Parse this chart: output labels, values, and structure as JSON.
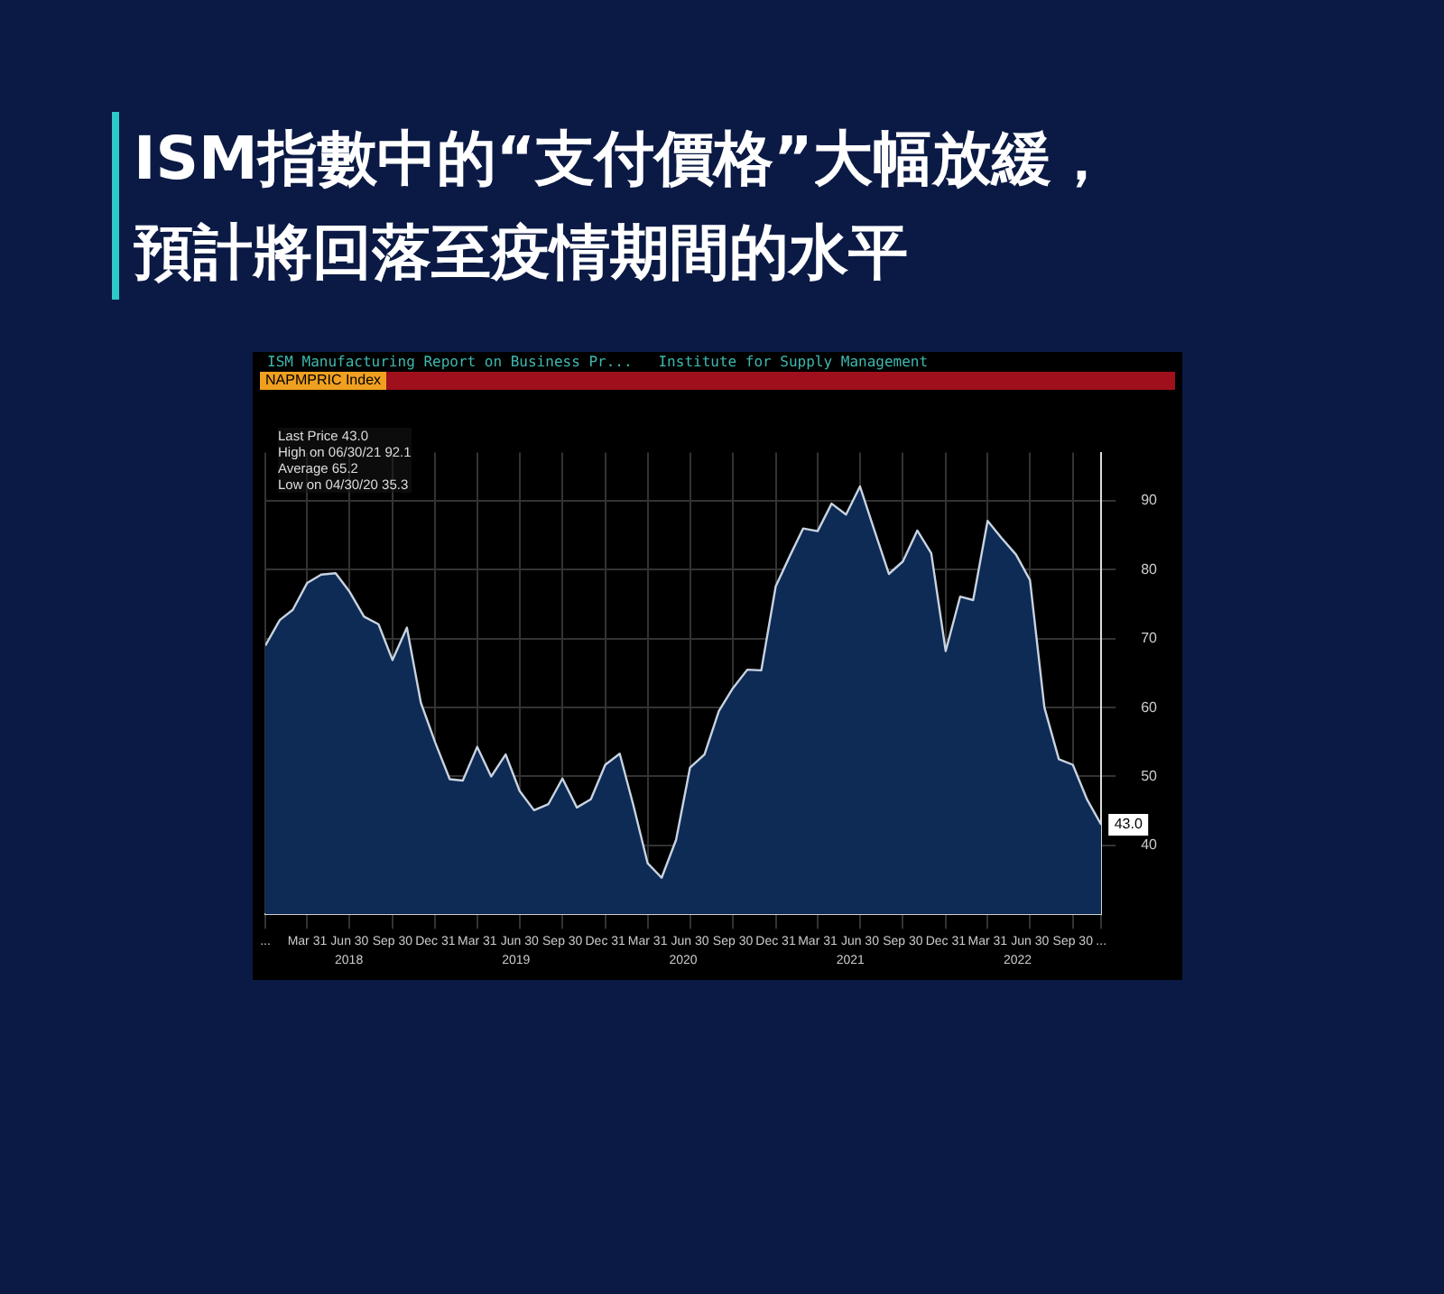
{
  "chart_data": {
    "type": "area",
    "title": "ISM指數中的“支付價格”大幅放緩，預計將回落至疫情期間的水平",
    "subtitle": "ISM Manufacturing Report on Business Pr...   Institute for Supply Management",
    "x": [
      "2017-12-31",
      "2018-01-31",
      "2018-02-28",
      "2018-03-31",
      "2018-04-30",
      "2018-05-31",
      "2018-06-30",
      "2018-07-31",
      "2018-08-31",
      "2018-09-30",
      "2018-10-31",
      "2018-11-30",
      "2018-12-31",
      "2019-01-31",
      "2019-02-28",
      "2019-03-31",
      "2019-04-30",
      "2019-05-31",
      "2019-06-30",
      "2019-07-31",
      "2019-08-31",
      "2019-09-30",
      "2019-10-31",
      "2019-11-30",
      "2019-12-31",
      "2020-01-31",
      "2020-02-29",
      "2020-03-31",
      "2020-04-30",
      "2020-05-31",
      "2020-06-30",
      "2020-07-31",
      "2020-08-31",
      "2020-09-30",
      "2020-10-31",
      "2020-11-30",
      "2020-12-31",
      "2021-01-31",
      "2021-02-28",
      "2021-03-31",
      "2021-04-30",
      "2021-05-31",
      "2021-06-30",
      "2021-07-31",
      "2021-08-31",
      "2021-09-30",
      "2021-10-31",
      "2021-11-30",
      "2021-12-31",
      "2022-01-31",
      "2022-02-28",
      "2022-03-31",
      "2022-04-30",
      "2022-05-31",
      "2022-06-30",
      "2022-07-31",
      "2022-08-31",
      "2022-09-30",
      "2022-10-31",
      "2022-11-30"
    ],
    "series": [
      {
        "color": "#0d2b55",
        "values": [
          69.0,
          72.7,
          74.2,
          78.1,
          79.3,
          79.5,
          76.8,
          73.2,
          72.1,
          66.9,
          71.6,
          60.7,
          54.9,
          49.6,
          49.4,
          54.3,
          50.0,
          53.2,
          47.9,
          45.1,
          46.0,
          49.7,
          45.5,
          46.7,
          51.7,
          53.3,
          45.9,
          37.4,
          35.3,
          40.8,
          51.3,
          53.2,
          59.5,
          62.8,
          65.5,
          65.4,
          77.6,
          82.1,
          86.0,
          85.6,
          89.6,
          88.0,
          92.1,
          85.7,
          79.4,
          81.2,
          85.7,
          82.4,
          68.2,
          76.1,
          75.6,
          87.1,
          84.6,
          82.2,
          78.5,
          60.0,
          52.5,
          51.7,
          46.6,
          43.0
        ],
        "value_labels": [
          null,
          null,
          null,
          null,
          null,
          null,
          null,
          null,
          null,
          null,
          null,
          null,
          null,
          null,
          null,
          null,
          null,
          null,
          null,
          null,
          null,
          null,
          null,
          null,
          null,
          null,
          null,
          null,
          null,
          null,
          null,
          null,
          null,
          null,
          null,
          null,
          null,
          null,
          null,
          null,
          null,
          null,
          null,
          null,
          null,
          null,
          null,
          null,
          null,
          null,
          null,
          null,
          null,
          null,
          null,
          null,
          null,
          null,
          null,
          "43.0"
        ]
      }
    ],
    "xlim": [
      "2017-12-31",
      "2022-11-30"
    ],
    "xticks": [
      {
        "value": "2017-12-31",
        "label": "..."
      },
      {
        "value": "2018-03-31",
        "label": "Mar 31"
      },
      {
        "value": "2018-06-30",
        "label": "Jun 30"
      },
      {
        "value": "2018-09-30",
        "label": "Sep 30"
      },
      {
        "value": "2018-12-31",
        "label": "Dec 31"
      },
      {
        "value": "2019-03-31",
        "label": "Mar 31"
      },
      {
        "value": "2019-06-30",
        "label": "Jun 30"
      },
      {
        "value": "2019-09-30",
        "label": "Sep 30"
      },
      {
        "value": "2019-12-31",
        "label": "Dec 31"
      },
      {
        "value": "2020-03-31",
        "label": "Mar 31"
      },
      {
        "value": "2020-06-30",
        "label": "Jun 30"
      },
      {
        "value": "2020-09-30",
        "label": "Sep 30"
      },
      {
        "value": "2020-12-31",
        "label": "Dec 31"
      },
      {
        "value": "2021-03-31",
        "label": "Mar 31"
      },
      {
        "value": "2021-06-30",
        "label": "Jun 30"
      },
      {
        "value": "2021-09-30",
        "label": "Sep 30"
      },
      {
        "value": "2021-12-31",
        "label": "Dec 31"
      },
      {
        "value": "2022-03-31",
        "label": "Mar 31"
      },
      {
        "value": "2022-06-30",
        "label": "Jun 30"
      },
      {
        "value": "2022-09-30",
        "label": "Sep 30"
      },
      {
        "value": "2022-11-30",
        "label": "..."
      }
    ],
    "ylim": [
      30,
      97
    ],
    "yticks": [
      40,
      50,
      60,
      70,
      80,
      90
    ],
    "grid": true,
    "annotations": [
      "NAPMPRIC Index",
      "Last Price 43.0",
      "High on 06/30/21 92.1",
      "Average 65.2",
      "Low on 04/30/20 35.3",
      "2018",
      "2019",
      "2020",
      "2021",
      "2022"
    ]
  }
}
